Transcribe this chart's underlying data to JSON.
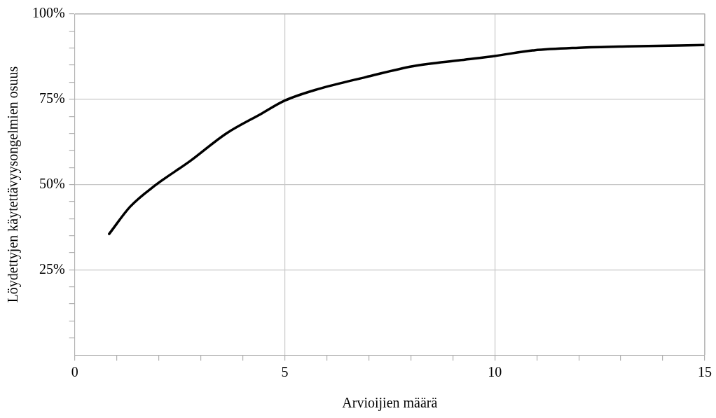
{
  "chart_data": {
    "type": "line",
    "xlabel": "Arvioijien määrä",
    "ylabel": "Löydettyjen käytettävyysongelmien osuus",
    "series": [
      {
        "color": "#000000",
        "x": [
          0.82,
          1.32,
          1.9,
          2.75,
          3.6,
          4.45,
          5,
          5.8,
          6.93,
          8.06,
          9.2,
          10,
          10.9,
          12,
          13.16,
          15
        ],
        "values": [
          35.5,
          43.5,
          49.6,
          56.9,
          64.9,
          70.8,
          74.6,
          78,
          81.5,
          84.7,
          86.5,
          87.7,
          89.3,
          90.1,
          90.5,
          90.9
        ]
      }
    ],
    "xlim": [
      0,
      15
    ],
    "xticks": [
      0,
      {
        "value": 1,
        "label": null
      },
      {
        "value": 2,
        "label": null
      },
      {
        "value": 3,
        "label": null
      },
      {
        "value": 4,
        "label": null
      },
      5,
      {
        "value": 6,
        "label": null
      },
      {
        "value": 7,
        "label": null
      },
      {
        "value": 8,
        "label": null
      },
      {
        "value": 9,
        "label": null
      },
      10,
      {
        "value": 11,
        "label": null
      },
      {
        "value": 12,
        "label": null
      },
      {
        "value": 13,
        "label": null
      },
      {
        "value": 14,
        "label": null
      },
      15
    ],
    "ylim": [
      0,
      100
    ],
    "yticks": [
      {
        "value": 5,
        "label": null
      },
      {
        "value": 10,
        "label": null
      },
      {
        "value": 15,
        "label": null
      },
      {
        "value": 20,
        "label": null
      },
      {
        "value": 25,
        "label": "25%"
      },
      {
        "value": 30,
        "label": null
      },
      {
        "value": 35,
        "label": null
      },
      {
        "value": 40,
        "label": null
      },
      {
        "value": 45,
        "label": null
      },
      {
        "value": 50,
        "label": "50%"
      },
      {
        "value": 55,
        "label": null
      },
      {
        "value": 60,
        "label": null
      },
      {
        "value": 65,
        "label": null
      },
      {
        "value": 70,
        "label": null
      },
      {
        "value": 75,
        "label": "75%"
      },
      {
        "value": 80,
        "label": null
      },
      {
        "value": 85,
        "label": null
      },
      {
        "value": 90,
        "label": null
      },
      {
        "value": 95,
        "label": null
      },
      {
        "value": 100,
        "label": "100%"
      }
    ],
    "grid": true,
    "marker": "none",
    "line_style": "solid"
  }
}
